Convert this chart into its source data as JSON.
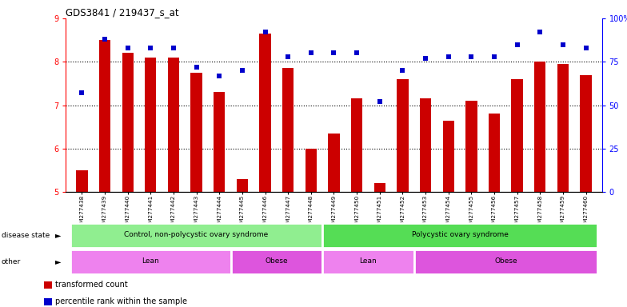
{
  "title": "GDS3841 / 219437_s_at",
  "samples": [
    "GSM277438",
    "GSM277439",
    "GSM277440",
    "GSM277441",
    "GSM277442",
    "GSM277443",
    "GSM277444",
    "GSM277445",
    "GSM277446",
    "GSM277447",
    "GSM277448",
    "GSM277449",
    "GSM277450",
    "GSM277451",
    "GSM277452",
    "GSM277453",
    "GSM277454",
    "GSM277455",
    "GSM277456",
    "GSM277457",
    "GSM277458",
    "GSM277459",
    "GSM277460"
  ],
  "bar_values": [
    5.5,
    8.5,
    8.2,
    8.1,
    8.1,
    7.75,
    7.3,
    5.3,
    8.65,
    7.85,
    6.0,
    6.35,
    7.15,
    5.2,
    7.6,
    7.15,
    6.65,
    7.1,
    6.8,
    7.6,
    8.0,
    7.95,
    7.7
  ],
  "percentile_values": [
    57,
    88,
    83,
    83,
    83,
    72,
    67,
    70,
    92,
    78,
    80,
    80,
    80,
    52,
    70,
    77,
    78,
    78,
    78,
    85,
    92,
    85,
    83
  ],
  "bar_color": "#cc0000",
  "dot_color": "#0000cc",
  "ylim_left": [
    5,
    9
  ],
  "ylim_right": [
    0,
    100
  ],
  "yticks_left": [
    5,
    6,
    7,
    8,
    9
  ],
  "yticks_right": [
    0,
    25,
    50,
    75,
    100
  ],
  "ytick_right_labels": [
    "0",
    "25",
    "50",
    "75",
    "100%"
  ],
  "grid_lines": [
    6,
    7,
    8
  ],
  "disease_state_groups": [
    {
      "label": "Control, non-polycystic ovary syndrome",
      "start": 0,
      "end": 11,
      "color": "#90ee90"
    },
    {
      "label": "Polycystic ovary syndrome",
      "start": 11,
      "end": 23,
      "color": "#55dd55"
    }
  ],
  "other_groups": [
    {
      "label": "Lean",
      "start": 0,
      "end": 7,
      "color": "#ee82ee"
    },
    {
      "label": "Obese",
      "start": 7,
      "end": 11,
      "color": "#dd55dd"
    },
    {
      "label": "Lean",
      "start": 11,
      "end": 15,
      "color": "#ee82ee"
    },
    {
      "label": "Obese",
      "start": 15,
      "end": 23,
      "color": "#dd55dd"
    }
  ],
  "disease_label": "disease state",
  "other_label": "other",
  "legend_bar_label": "transformed count",
  "legend_dot_label": "percentile rank within the sample",
  "background_color": "#ffffff",
  "plot_bg_color": "#ffffff",
  "xtick_bg_color": "#d8d8d8",
  "bar_width": 0.5,
  "dot_size": 18
}
